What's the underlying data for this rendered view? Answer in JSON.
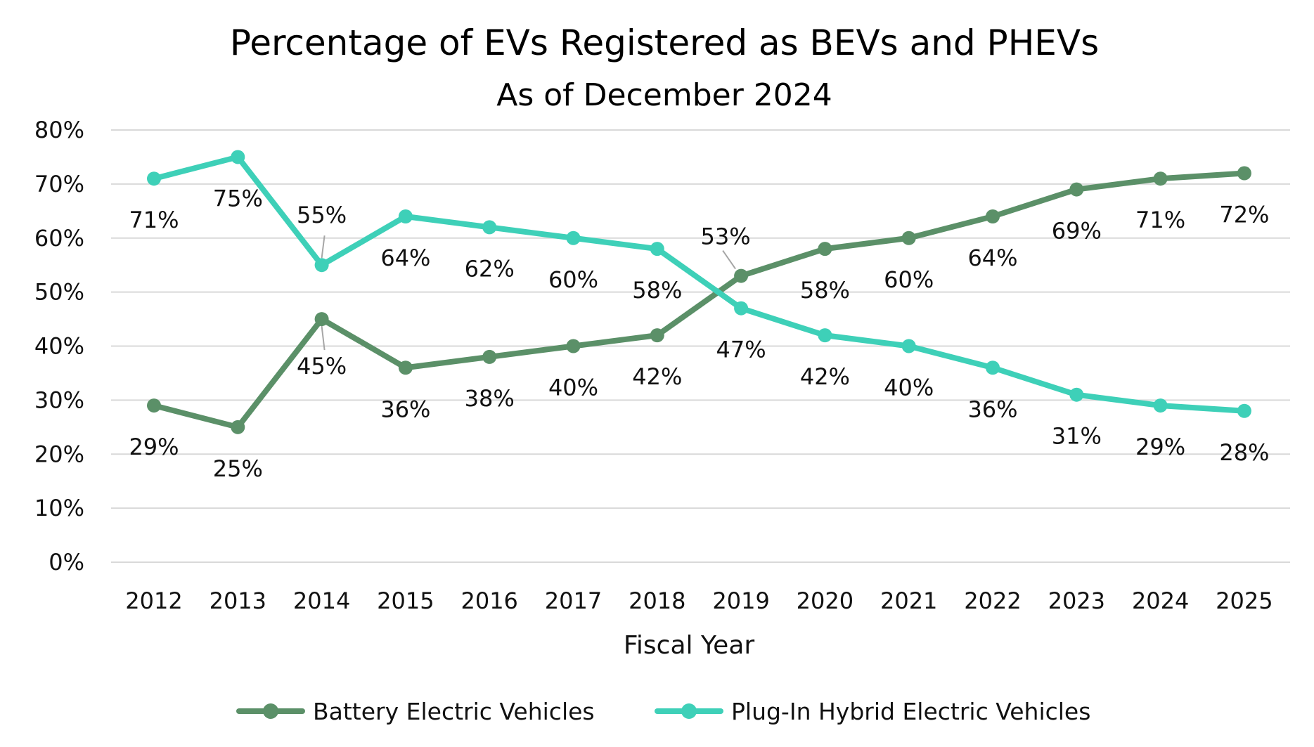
{
  "chart_data": {
    "type": "line",
    "title": "Percentage of EVs Registered as BEVs and PHEVs",
    "subtitle": "As of December 2024",
    "xlabel": "Fiscal Year",
    "ylabel": "",
    "ylim": [
      0,
      80
    ],
    "y_tick_labels": [
      "0%",
      "10%",
      "20%",
      "30%",
      "40%",
      "50%",
      "60%",
      "70%",
      "80%"
    ],
    "y_tick_values": [
      0,
      10,
      20,
      30,
      40,
      50,
      60,
      70,
      80
    ],
    "categories": [
      "2012",
      "2013",
      "2014",
      "2015",
      "2016",
      "2017",
      "2018",
      "2019",
      "2020",
      "2021",
      "2022",
      "2023",
      "2024",
      "2025"
    ],
    "grid": true,
    "legend_position": "bottom",
    "series": [
      {
        "name": "Battery Electric Vehicles",
        "color": "#5b9068",
        "values": [
          29,
          25,
          45,
          36,
          38,
          40,
          42,
          53,
          58,
          60,
          64,
          69,
          71,
          72
        ],
        "labels": [
          "29%",
          "25%",
          "45%",
          "36%",
          "38%",
          "40%",
          "42%",
          "53%",
          "58%",
          "60%",
          "64%",
          "69%",
          "71%",
          "72%"
        ]
      },
      {
        "name": "Plug-In Hybrid Electric Vehicles",
        "color": "#3ed0b8",
        "values": [
          71,
          75,
          55,
          64,
          62,
          60,
          58,
          47,
          42,
          40,
          36,
          31,
          29,
          28
        ],
        "labels": [
          "71%",
          "75%",
          "55%",
          "64%",
          "62%",
          "60%",
          "58%",
          "47%",
          "42%",
          "40%",
          "36%",
          "31%",
          "29%",
          "28%"
        ]
      }
    ]
  }
}
